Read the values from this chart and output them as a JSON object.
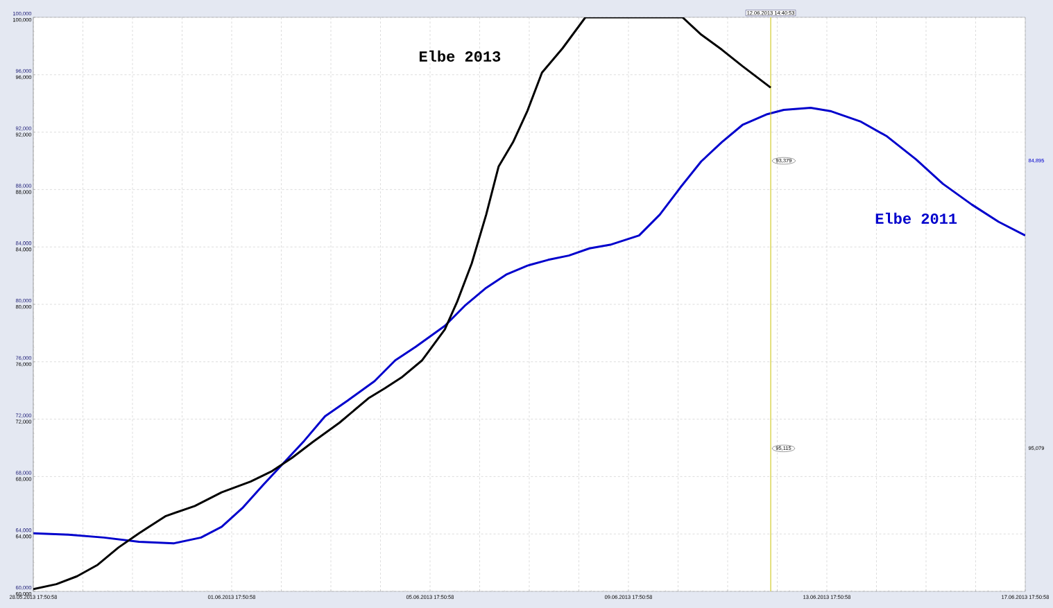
{
  "chart_data": {
    "type": "line",
    "xlim": [
      "2013-05-28T17:50:58",
      "2013-06-17T17:50:58"
    ],
    "xticks": [
      {
        "value": "2013-05-28T17:50:58",
        "label": "28.05.2013  17:50:58"
      },
      {
        "value": "2013-05-29T17:50:58",
        "label": null
      },
      {
        "value": "2013-05-30T17:50:58",
        "label": null
      },
      {
        "value": "2013-05-31T17:50:58",
        "label": null
      },
      {
        "value": "2013-06-01T17:50:58",
        "label": "01.06.2013  17:50:58"
      },
      {
        "value": "2013-06-02T17:50:58",
        "label": null
      },
      {
        "value": "2013-06-03T17:50:58",
        "label": null
      },
      {
        "value": "2013-06-04T17:50:58",
        "label": null
      },
      {
        "value": "2013-06-05T17:50:58",
        "label": "05.06.2013  17:50:58"
      },
      {
        "value": "2013-06-06T17:50:58",
        "label": null
      },
      {
        "value": "2013-06-07T17:50:58",
        "label": null
      },
      {
        "value": "2013-06-08T17:50:58",
        "label": null
      },
      {
        "value": "2013-06-09T17:50:58",
        "label": "09.06.2013  17:50:58"
      },
      {
        "value": "2013-06-10T17:50:58",
        "label": null
      },
      {
        "value": "2013-06-11T17:50:58",
        "label": null
      },
      {
        "value": "2013-06-12T17:50:58",
        "label": null
      },
      {
        "value": "2013-06-13T17:50:58",
        "label": "13.06.2013  17:50:58"
      },
      {
        "value": "2013-06-14T17:50:58",
        "label": null
      },
      {
        "value": "2013-06-15T17:50:58",
        "label": null
      },
      {
        "value": "2013-06-16T17:50:58",
        "label": null
      },
      {
        "value": "2013-06-17T17:50:58",
        "label": "17.06.2013  17:50:58"
      }
    ],
    "ylim": [
      60000,
      100000
    ],
    "yticks": [
      {
        "value": 60000,
        "label": "60,000"
      },
      {
        "value": 64000,
        "label": "64,000"
      },
      {
        "value": 68000,
        "label": "68,000"
      },
      {
        "value": 72000,
        "label": "72,000"
      },
      {
        "value": 76000,
        "label": "76,000"
      },
      {
        "value": 80000,
        "label": "80,000"
      },
      {
        "value": 84000,
        "label": "84,000"
      },
      {
        "value": 88000,
        "label": "88,000"
      },
      {
        "value": 92000,
        "label": "92,000"
      },
      {
        "value": 96000,
        "label": "96,000"
      },
      {
        "value": 100000,
        "label": "100,000"
      }
    ],
    "y2lim": [
      60000,
      100000
    ],
    "y2ticks": [
      {
        "value": 60000,
        "label": "60,000"
      },
      {
        "value": 64000,
        "label": "64,000"
      },
      {
        "value": 68000,
        "label": "68,000"
      },
      {
        "value": 72000,
        "label": "72,000"
      },
      {
        "value": 76000,
        "label": "76,000"
      },
      {
        "value": 80000,
        "label": "80,000"
      },
      {
        "value": 84000,
        "label": "84,000"
      },
      {
        "value": 88000,
        "label": "88,000"
      },
      {
        "value": 92000,
        "label": "92,000"
      },
      {
        "value": 96000,
        "label": "96,000"
      },
      {
        "value": 100000,
        "label": "100,000"
      }
    ],
    "grid": true,
    "series": [
      {
        "name": "Elbe 2011",
        "color": "#0000cc",
        "axis": "y",
        "x": [
          "2013-05-28T17:51",
          "2013-05-29T11:00",
          "2013-05-30T04:00",
          "2013-05-30T21:00",
          "2013-05-31T14:00",
          "2013-06-01T03:00",
          "2013-06-01T13:00",
          "2013-06-01T23:00",
          "2013-06-02T09:00",
          "2013-06-02T19:00",
          "2013-06-03T05:00",
          "2013-06-03T15:00",
          "2013-06-04T02:00",
          "2013-06-04T15:00",
          "2013-06-05T01:00",
          "2013-06-05T11:00",
          "2013-06-06T01:00",
          "2013-06-06T11:00",
          "2013-06-06T21:00",
          "2013-06-07T07:00",
          "2013-06-07T17:00",
          "2013-06-08T03:00",
          "2013-06-08T13:00",
          "2013-06-08T23:00",
          "2013-06-09T09:00",
          "2013-06-09T23:00",
          "2013-06-10T09:00",
          "2013-06-10T19:00",
          "2013-06-11T05:00",
          "2013-06-11T15:00",
          "2013-06-12T01:00",
          "2013-06-12T13:00",
          "2013-06-12T21:00",
          "2013-06-13T10:00",
          "2013-06-13T20:00",
          "2013-06-14T10:00",
          "2013-06-14T23:00",
          "2013-06-15T13:00",
          "2013-06-16T02:00",
          "2013-06-16T16:00",
          "2013-06-17T05:00",
          "2013-06-17T17:50"
        ],
        "values": [
          64050,
          63950,
          63750,
          63450,
          63350,
          63750,
          64500,
          65800,
          67400,
          68950,
          70500,
          72200,
          73300,
          74650,
          76100,
          77050,
          78500,
          79950,
          81150,
          82100,
          82700,
          83100,
          83400,
          83900,
          84150,
          84800,
          86250,
          88150,
          89950,
          91300,
          92500,
          93250,
          93550,
          93700,
          93450,
          92750,
          91700,
          90100,
          88400,
          86950,
          85750,
          84800
        ]
      },
      {
        "name": "Elbe 2013",
        "color": "#000000",
        "axis": "y2",
        "x": [
          "2013-05-28T17:51",
          "2013-05-29T05:00",
          "2013-05-29T15:00",
          "2013-05-30T01:00",
          "2013-05-30T11:00",
          "2013-05-30T21:00",
          "2013-05-31T10:00",
          "2013-06-01T00:00",
          "2013-06-01T13:00",
          "2013-06-02T03:00",
          "2013-06-02T13:00",
          "2013-06-02T23:00",
          "2013-06-03T09:00",
          "2013-06-03T22:00",
          "2013-06-04T12:00",
          "2013-06-04T20:00",
          "2013-06-05T04:00",
          "2013-06-05T14:00",
          "2013-06-06T01:00",
          "2013-06-06T07:00",
          "2013-06-06T14:00",
          "2013-06-06T21:00",
          "2013-06-07T03:00",
          "2013-06-07T10:00",
          "2013-06-07T17:00",
          "2013-06-08T00:00",
          "2013-06-08T10:00",
          "2013-06-08T21:00",
          "2013-06-10T20:00",
          "2013-06-11T05:00",
          "2013-06-11T15:00",
          "2013-06-12T01:00",
          "2013-06-12T14:40"
        ],
        "values": [
          60150,
          60500,
          61050,
          61850,
          63050,
          64050,
          65250,
          65950,
          66900,
          67650,
          68350,
          69300,
          70400,
          71750,
          73450,
          74150,
          74900,
          76100,
          78250,
          80200,
          82850,
          86250,
          89600,
          91300,
          93500,
          96150,
          97850,
          100000,
          100000,
          98800,
          97750,
          96600,
          95100
        ]
      }
    ],
    "ref_lines": [
      {
        "axis": "x",
        "value": "2013-06-12T14:40:53",
        "label": "12.06.2013  14:40:53",
        "color": "#c8c000"
      }
    ],
    "annotations": [
      "93,379",
      "95,115",
      "84,895",
      "95,079"
    ]
  }
}
